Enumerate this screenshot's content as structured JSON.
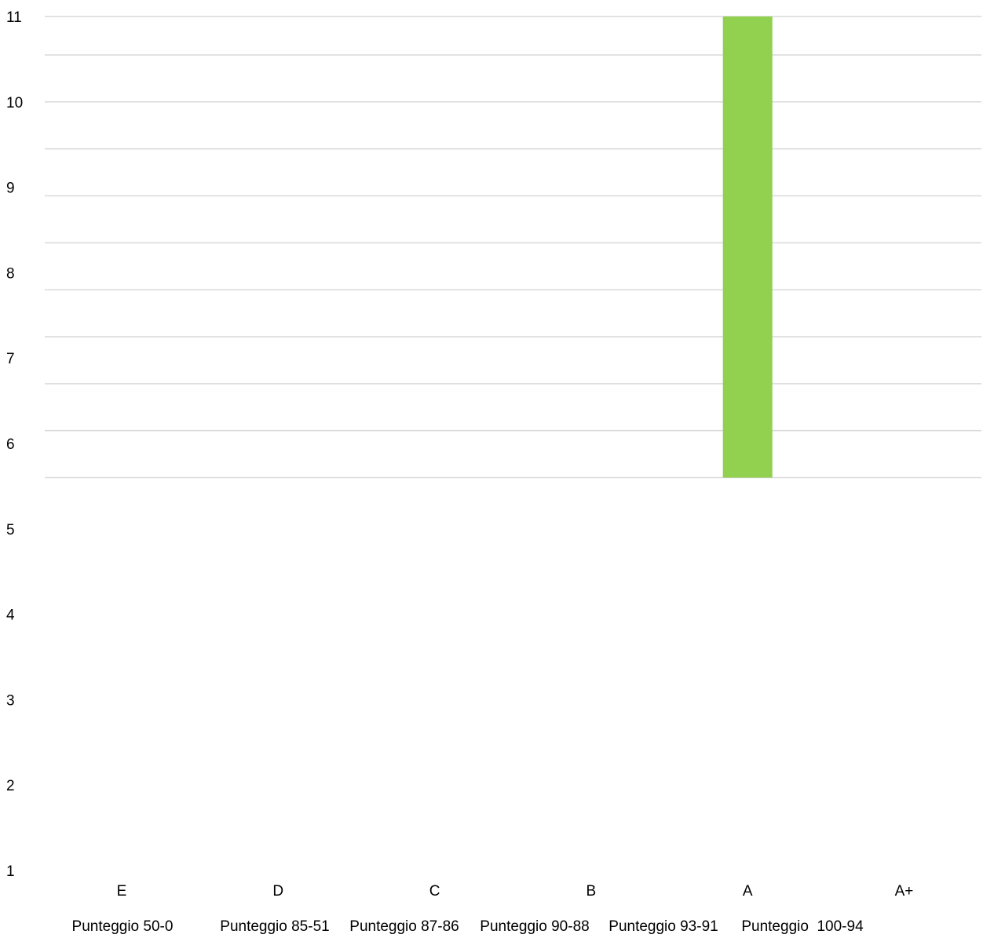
{
  "chart_data": {
    "type": "bar",
    "title": "",
    "xlabel": "",
    "ylabel": "",
    "categories": [
      "E",
      "D",
      "C",
      "B",
      "A",
      "A+"
    ],
    "score_labels": [
      "Punteggio 50-0",
      "Punteggio 85-51",
      "Punteggio 87-86",
      "Punteggio 90-88",
      "Punteggio 93-91",
      "Punteggio  100-94"
    ],
    "series": [
      {
        "color": "#92d050",
        "bars": [
          {
            "category": "A",
            "from": 5.6,
            "to": 11
          }
        ]
      }
    ],
    "yticks": [
      1,
      2,
      3,
      4,
      5,
      6,
      7,
      8,
      9,
      10,
      11
    ],
    "gridlines": [
      5.6,
      6.15,
      6.7,
      7.25,
      7.8,
      8.35,
      8.9,
      9.45,
      10.0,
      10.55,
      11.0
    ],
    "ylim": [
      1,
      11
    ],
    "gridline_color": "#d9d9d9",
    "grid": true,
    "legend": "none"
  }
}
